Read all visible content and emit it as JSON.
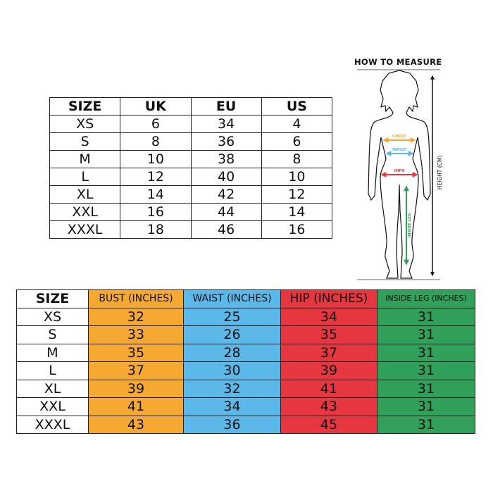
{
  "conversion_table": {
    "headers": [
      "SIZE",
      "UK",
      "EU",
      "US"
    ],
    "rows": [
      [
        "XS",
        "6",
        "34",
        "4"
      ],
      [
        "S",
        "8",
        "36",
        "6"
      ],
      [
        "M",
        "10",
        "38",
        "8"
      ],
      [
        "L",
        "12",
        "40",
        "10"
      ],
      [
        "XL",
        "14",
        "42",
        "12"
      ],
      [
        "XXL",
        "16",
        "44",
        "14"
      ],
      [
        "XXXL",
        "18",
        "46",
        "16"
      ]
    ]
  },
  "measurement_table": {
    "headers": [
      "SIZE",
      "BUST (INCHES)",
      "WAIST (INCHES)",
      "HIP (INCHES)",
      "INSIDE LEG (INCHES)"
    ],
    "rows": [
      [
        "XS",
        "32",
        "25",
        "34",
        "31"
      ],
      [
        "S",
        "33",
        "26",
        "35",
        "31"
      ],
      [
        "M",
        "35",
        "28",
        "37",
        "31"
      ],
      [
        "L",
        "37",
        "30",
        "39",
        "31"
      ],
      [
        "XL",
        "39",
        "32",
        "41",
        "31"
      ],
      [
        "XXL",
        "41",
        "34",
        "43",
        "31"
      ],
      [
        "XXXL",
        "43",
        "36",
        "45",
        "31"
      ]
    ],
    "column_colors": [
      "#ffffff",
      "#f5a832",
      "#5bb8e8",
      "#e63640",
      "#31a05a"
    ]
  },
  "how_to_measure": {
    "title": "HOW TO MEASURE",
    "chest": "CHEST",
    "waist": "WAIST",
    "hips": "HIPS",
    "inside_leg": "INSIDE LEG",
    "height": "HEIGHT (CM)",
    "colors": {
      "chest": "#f5a832",
      "waist": "#5bb8e8",
      "hips": "#e63640",
      "inside_leg": "#31a05a"
    }
  }
}
